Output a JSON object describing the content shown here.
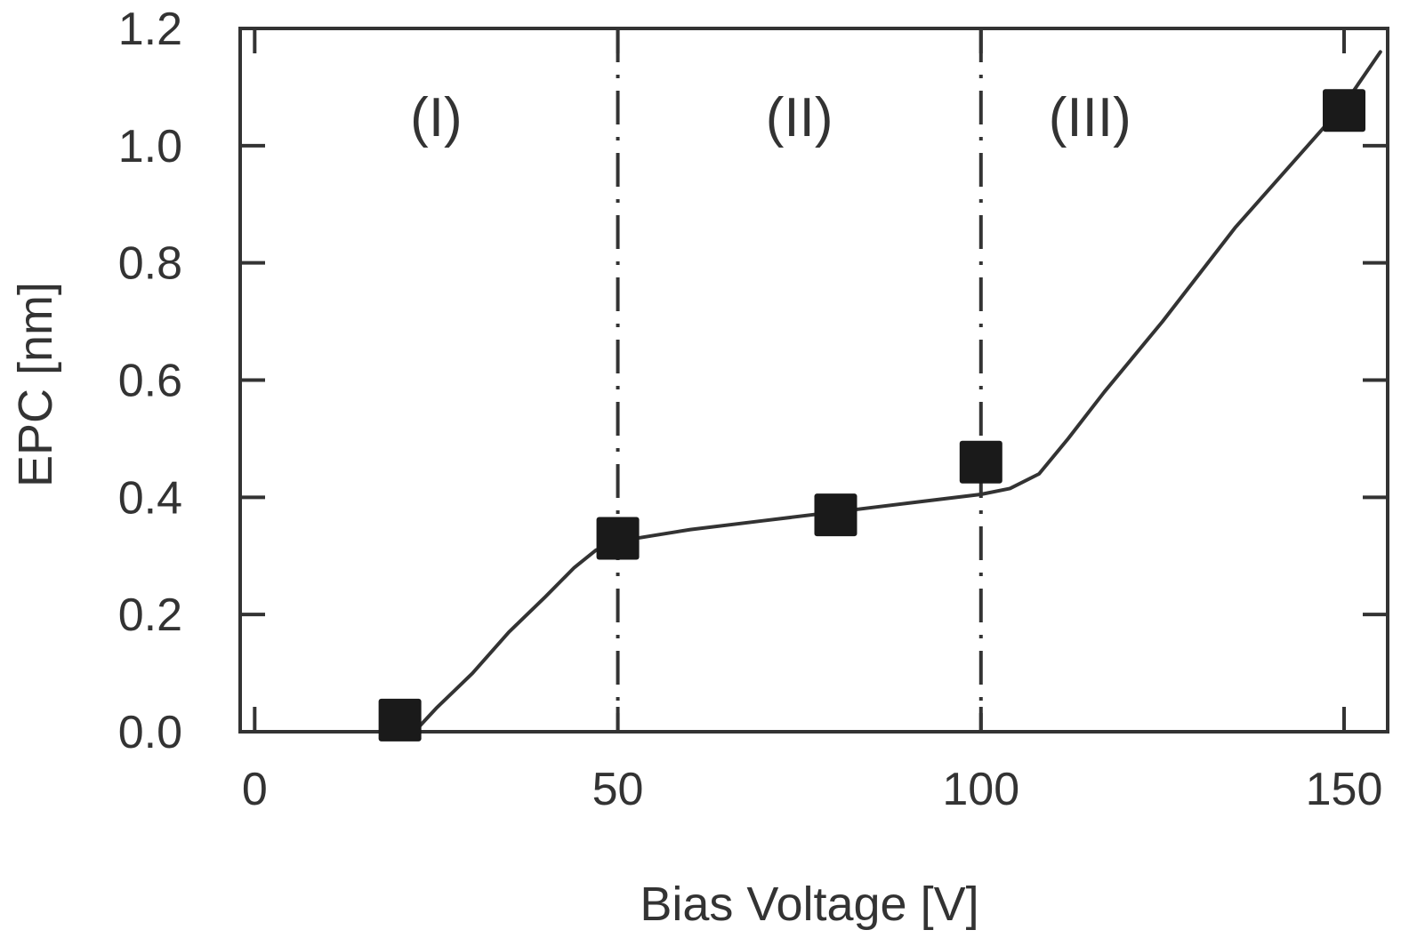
{
  "chart_data": {
    "type": "scatter",
    "title": "",
    "xlabel": "Bias Voltage [V]",
    "ylabel": "EPC [nm]",
    "xlim": [
      -2,
      156
    ],
    "ylim": [
      0.0,
      1.2
    ],
    "x_ticks": [
      0,
      50,
      100,
      150
    ],
    "x_tick_labels": [
      "0",
      "50",
      "100",
      "150"
    ],
    "y_ticks": [
      0.0,
      0.2,
      0.4,
      0.6,
      0.8,
      1.0,
      1.2
    ],
    "y_tick_labels": [
      "0.0",
      "0.2",
      "0.4",
      "0.6",
      "0.8",
      "1.0",
      "1.2"
    ],
    "grid": false,
    "series": [
      {
        "marker": "square",
        "color": "#1a1a1a",
        "points": [
          {
            "x": 20,
            "y": 0.02
          },
          {
            "x": 50,
            "y": 0.33
          },
          {
            "x": 80,
            "y": 0.37
          },
          {
            "x": 100,
            "y": 0.46
          },
          {
            "x": 150,
            "y": 1.06
          }
        ]
      }
    ],
    "fit_curve": {
      "color": "#333333",
      "points": [
        [
          22,
          0.0
        ],
        [
          25,
          0.04
        ],
        [
          30,
          0.1
        ],
        [
          35,
          0.17
        ],
        [
          40,
          0.23
        ],
        [
          44,
          0.28
        ],
        [
          47,
          0.31
        ],
        [
          50,
          0.325
        ],
        [
          55,
          0.335
        ],
        [
          60,
          0.345
        ],
        [
          70,
          0.36
        ],
        [
          80,
          0.375
        ],
        [
          90,
          0.39
        ],
        [
          100,
          0.405
        ],
        [
          104,
          0.415
        ],
        [
          108,
          0.44
        ],
        [
          112,
          0.5
        ],
        [
          117,
          0.58
        ],
        [
          125,
          0.7
        ],
        [
          135,
          0.86
        ],
        [
          145,
          1.0
        ],
        [
          150,
          1.07
        ],
        [
          155,
          1.16
        ]
      ]
    },
    "reference_lines": [
      {
        "x": 50,
        "style": "dash-dot",
        "color": "#333333"
      },
      {
        "x": 100,
        "style": "dash-dot",
        "color": "#333333"
      }
    ],
    "annotations": [
      {
        "text": "(I)",
        "x": 25,
        "y": 1.05
      },
      {
        "text": "(II)",
        "x": 75,
        "y": 1.05
      },
      {
        "text": "(III)",
        "x": 115,
        "y": 1.05
      }
    ]
  }
}
